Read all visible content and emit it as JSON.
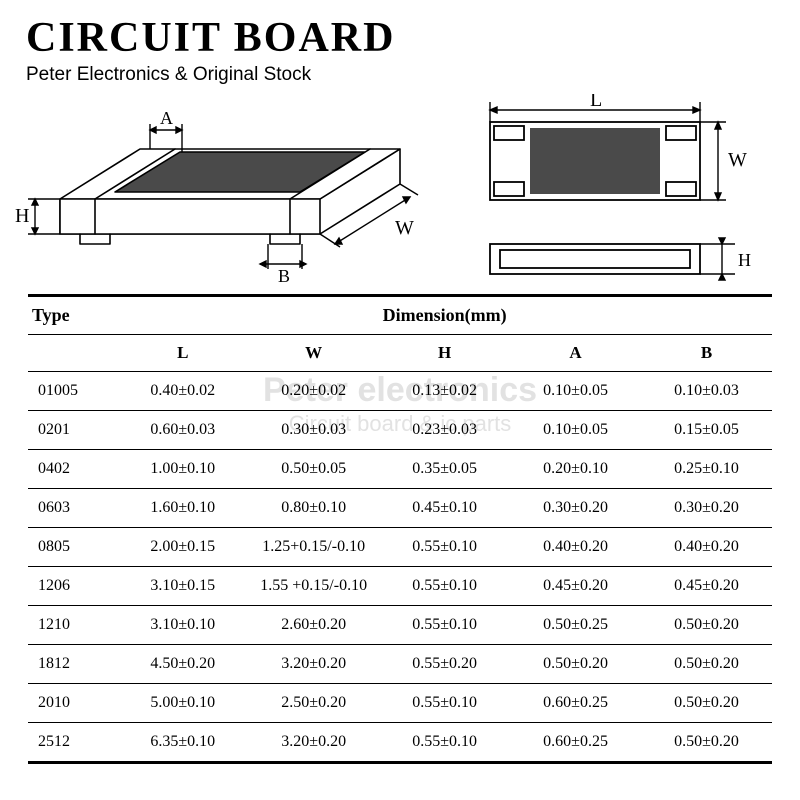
{
  "header": {
    "title": "CIRCUIT BOARD",
    "subtitle": "Peter Electronics & Original Stock"
  },
  "watermark": {
    "line1": "Peter electronics",
    "line2": "Circuit board & ic parts"
  },
  "diagram": {
    "labels": {
      "L": "L",
      "W": "W",
      "H": "H",
      "A": "A",
      "B": "B"
    },
    "stroke": "#000000",
    "body_fill": "#ffffff",
    "top_fill": "#4a4a4a",
    "line_width": 1.6
  },
  "table": {
    "header_type": "Type",
    "header_dimension": "Dimension(mm)",
    "columns": [
      "L",
      "W",
      "H",
      "A",
      "B"
    ],
    "rows": [
      {
        "type": "01005",
        "L": "0.40±0.02",
        "W": "0.20±0.02",
        "H": "0.13±0.02",
        "A": "0.10±0.05",
        "B": "0.10±0.03"
      },
      {
        "type": "0201",
        "L": "0.60±0.03",
        "W": "0.30±0.03",
        "H": "0.23±0.03",
        "A": "0.10±0.05",
        "B": "0.15±0.05"
      },
      {
        "type": "0402",
        "L": "1.00±0.10",
        "W": "0.50±0.05",
        "H": "0.35±0.05",
        "A": "0.20±0.10",
        "B": "0.25±0.10"
      },
      {
        "type": "0603",
        "L": "1.60±0.10",
        "W": "0.80±0.10",
        "H": "0.45±0.10",
        "A": "0.30±0.20",
        "B": "0.30±0.20"
      },
      {
        "type": "0805",
        "L": "2.00±0.15",
        "W": "1.25+0.15/-0.10",
        "H": "0.55±0.10",
        "A": "0.40±0.20",
        "B": "0.40±0.20"
      },
      {
        "type": "1206",
        "L": "3.10±0.15",
        "W": "1.55 +0.15/-0.10",
        "H": "0.55±0.10",
        "A": "0.45±0.20",
        "B": "0.45±0.20"
      },
      {
        "type": "1210",
        "L": "3.10±0.10",
        "W": "2.60±0.20",
        "H": "0.55±0.10",
        "A": "0.50±0.25",
        "B": "0.50±0.20"
      },
      {
        "type": "1812",
        "L": "4.50±0.20",
        "W": "3.20±0.20",
        "H": "0.55±0.20",
        "A": "0.50±0.20",
        "B": "0.50±0.20"
      },
      {
        "type": "2010",
        "L": "5.00±0.10",
        "W": "2.50±0.20",
        "H": "0.55±0.10",
        "A": "0.60±0.25",
        "B": "0.50±0.20"
      },
      {
        "type": "2512",
        "L": "6.35±0.10",
        "W": "3.20±0.20",
        "H": "0.55±0.10",
        "A": "0.60±0.25",
        "B": "0.50±0.20"
      }
    ],
    "border_color": "#000000",
    "font_size_header": 18,
    "font_size_cell": 16
  }
}
